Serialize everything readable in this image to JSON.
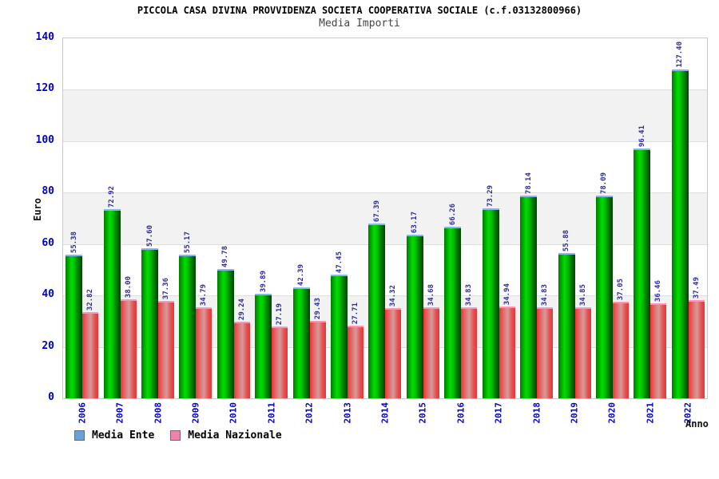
{
  "title": "PICCOLA CASA DIVINA PROVVIDENZA SOCIETA COOPERATIVA SOCIALE (c.f.03132800966)",
  "subtitle": "Media Importi",
  "axes": {
    "y_label": "Euro",
    "x_label": "Anno",
    "y_ticks": [
      0,
      20,
      40,
      60,
      80,
      100,
      120,
      140
    ]
  },
  "legend": [
    {
      "label": "Media Ente",
      "color": "#68a0dc"
    },
    {
      "label": "Media Nazionale",
      "color": "#ee82ab"
    }
  ],
  "colors": {
    "bar_ente": "#00c800",
    "bar_nazionale": "#e25454",
    "axis_text": "#0000cc",
    "value_text": "#2b2b9e",
    "band_gray": "#f2f2f2",
    "band_white": "#ffffff"
  },
  "chart_data": {
    "type": "bar",
    "title": "Media Importi",
    "xlabel": "Anno",
    "ylabel": "Euro",
    "ylim": [
      0,
      140
    ],
    "grid": true,
    "legend_position": "bottom-left",
    "categories": [
      "2006",
      "2007",
      "2008",
      "2009",
      "2010",
      "2011",
      "2012",
      "2013",
      "2014",
      "2015",
      "2016",
      "2017",
      "2018",
      "2019",
      "2020",
      "2021",
      "2022"
    ],
    "series": [
      {
        "name": "Media Ente",
        "values": [
          55.38,
          72.92,
          57.6,
          55.17,
          49.78,
          39.89,
          42.39,
          47.45,
          67.39,
          63.17,
          66.26,
          73.29,
          78.14,
          55.88,
          78.09,
          96.41,
          127.4
        ]
      },
      {
        "name": "Media Nazionale",
        "values": [
          32.82,
          38.0,
          37.36,
          34.79,
          29.24,
          27.19,
          29.43,
          27.71,
          34.32,
          34.68,
          34.83,
          34.94,
          34.83,
          34.85,
          37.05,
          36.46,
          37.49
        ]
      }
    ]
  }
}
